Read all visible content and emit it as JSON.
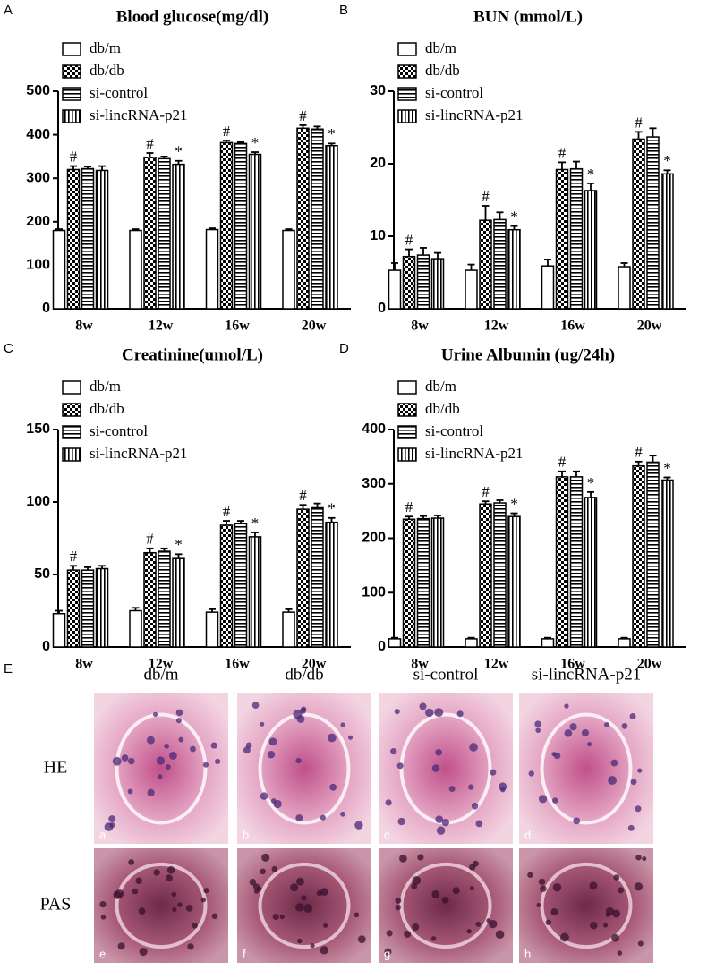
{
  "chart_data": [
    {
      "type": "bar",
      "panel": "A",
      "title": "Blood glucose(mg/dl)",
      "categories": [
        "8w",
        "12w",
        "16w",
        "20w"
      ],
      "ylim": [
        0,
        500
      ],
      "yticks": [
        0,
        100,
        200,
        300,
        400,
        500
      ],
      "series": [
        {
          "name": "db/m",
          "color": "#ffffff",
          "pattern": "none",
          "values": [
            180,
            180,
            182,
            180
          ],
          "errors": [
            3,
            3,
            3,
            3
          ],
          "annotations": [
            null,
            null,
            null,
            null
          ]
        },
        {
          "name": "db/db",
          "color": "#000000",
          "pattern": "checker",
          "values": [
            320,
            348,
            382,
            415
          ],
          "errors": [
            8,
            10,
            5,
            7
          ],
          "annotations": [
            "#",
            "#",
            "#",
            "#"
          ]
        },
        {
          "name": "si-control",
          "color": "#000000",
          "pattern": "hstripe",
          "values": [
            322,
            345,
            380,
            413
          ],
          "errors": [
            5,
            5,
            3,
            6
          ],
          "annotations": [
            null,
            null,
            null,
            null
          ]
        },
        {
          "name": "si-lincRNA-p21",
          "color": "#000000",
          "pattern": "vstripe",
          "values": [
            318,
            332,
            355,
            375
          ],
          "errors": [
            10,
            8,
            5,
            5
          ],
          "annotations": [
            null,
            "*",
            "*",
            "*"
          ]
        }
      ]
    },
    {
      "type": "bar",
      "panel": "B",
      "title": "BUN (mmol/L)",
      "categories": [
        "8w",
        "12w",
        "16w",
        "20w"
      ],
      "ylim": [
        0,
        30
      ],
      "yticks": [
        0,
        10,
        20,
        30
      ],
      "series": [
        {
          "name": "db/m",
          "color": "#ffffff",
          "pattern": "none",
          "values": [
            5.3,
            5.3,
            5.9,
            5.8
          ],
          "errors": [
            1,
            0.8,
            0.9,
            0.5
          ],
          "annotations": [
            null,
            null,
            null,
            null
          ]
        },
        {
          "name": "db/db",
          "color": "#000000",
          "pattern": "checker",
          "values": [
            7.2,
            12.2,
            19.2,
            23.4
          ],
          "errors": [
            1,
            2,
            1,
            1
          ],
          "annotations": [
            "#",
            "#",
            "#",
            "#"
          ]
        },
        {
          "name": "si-control",
          "color": "#000000",
          "pattern": "hstripe",
          "values": [
            7.4,
            12.3,
            19.3,
            23.7
          ],
          "errors": [
            1,
            1,
            1,
            1.2
          ],
          "annotations": [
            null,
            null,
            null,
            null
          ]
        },
        {
          "name": "si-lincRNA-p21",
          "color": "#000000",
          "pattern": "vstripe",
          "values": [
            6.9,
            10.9,
            16.3,
            18.6
          ],
          "errors": [
            0.8,
            0.5,
            1,
            0.5
          ],
          "annotations": [
            null,
            "*",
            "*",
            "*"
          ]
        }
      ]
    },
    {
      "type": "bar",
      "panel": "C",
      "title": "Creatinine(umol/L)",
      "categories": [
        "8w",
        "12w",
        "16w",
        "20w"
      ],
      "ylim": [
        0,
        150
      ],
      "yticks": [
        0,
        50,
        100,
        150
      ],
      "series": [
        {
          "name": "db/m",
          "color": "#ffffff",
          "pattern": "none",
          "values": [
            23,
            25,
            24,
            24
          ],
          "errors": [
            2,
            2,
            2,
            2
          ],
          "annotations": [
            null,
            null,
            null,
            null
          ]
        },
        {
          "name": "db/db",
          "color": "#000000",
          "pattern": "checker",
          "values": [
            53,
            65,
            84,
            95
          ],
          "errors": [
            3,
            3,
            3,
            3
          ],
          "annotations": [
            "#",
            "#",
            "#",
            "#"
          ]
        },
        {
          "name": "si-control",
          "color": "#000000",
          "pattern": "hstripe",
          "values": [
            53,
            66,
            85,
            96
          ],
          "errors": [
            2,
            2,
            2,
            3
          ],
          "annotations": [
            null,
            null,
            null,
            null
          ]
        },
        {
          "name": "si-lincRNA-p21",
          "color": "#000000",
          "pattern": "vstripe",
          "values": [
            54,
            61,
            76,
            86
          ],
          "errors": [
            2,
            3,
            3,
            3
          ],
          "annotations": [
            null,
            "*",
            "*",
            "*"
          ]
        }
      ]
    },
    {
      "type": "bar",
      "panel": "D",
      "title": "Urine Albumin (ug/24h)",
      "categories": [
        "8w",
        "12w",
        "16w",
        "20w"
      ],
      "ylim": [
        0,
        400
      ],
      "yticks": [
        0,
        100,
        200,
        300,
        400
      ],
      "series": [
        {
          "name": "db/m",
          "color": "#ffffff",
          "pattern": "none",
          "values": [
            15,
            15,
            15,
            15
          ],
          "errors": [
            2,
            2,
            2,
            2
          ],
          "annotations": [
            null,
            null,
            null,
            null
          ]
        },
        {
          "name": "db/db",
          "color": "#000000",
          "pattern": "checker",
          "values": [
            235,
            263,
            313,
            333
          ],
          "errors": [
            5,
            5,
            10,
            8
          ],
          "annotations": [
            "#",
            "#",
            "#",
            "#"
          ]
        },
        {
          "name": "si-control",
          "color": "#000000",
          "pattern": "hstripe",
          "values": [
            236,
            265,
            313,
            340
          ],
          "errors": [
            5,
            5,
            10,
            12
          ],
          "annotations": [
            null,
            null,
            null,
            null
          ]
        },
        {
          "name": "si-lincRNA-p21",
          "color": "#000000",
          "pattern": "vstripe",
          "values": [
            237,
            240,
            275,
            307
          ],
          "errors": [
            5,
            6,
            10,
            5
          ],
          "annotations": [
            null,
            "*",
            "*",
            "*"
          ]
        }
      ]
    }
  ],
  "histology": {
    "panel": "E",
    "columns": [
      "db/m",
      "db/db",
      "si-control",
      "si-lincRNA-p21"
    ],
    "rows": [
      "HE",
      "PAS"
    ],
    "images": [
      "a",
      "b",
      "c",
      "d",
      "e",
      "f",
      "g",
      "h"
    ]
  }
}
